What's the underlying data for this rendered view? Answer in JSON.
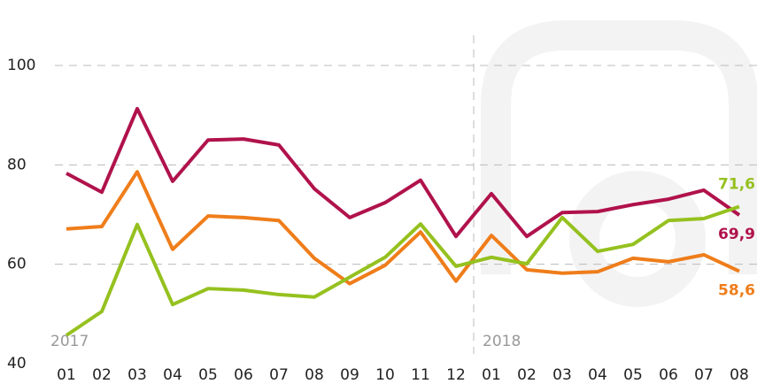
{
  "chart_data": {
    "type": "line",
    "categories": [
      "01",
      "02",
      "03",
      "04",
      "05",
      "06",
      "07",
      "08",
      "09",
      "10",
      "11",
      "12",
      "01",
      "02",
      "03",
      "04",
      "05",
      "06",
      "07",
      "08"
    ],
    "groups": [
      {
        "label": "2017",
        "count": 12
      },
      {
        "label": "2018",
        "count": 8
      }
    ],
    "series": [
      {
        "color": "#b0124c",
        "values": [
          78.3,
          74.5,
          91.3,
          76.7,
          85.0,
          85.2,
          84.0,
          75.2,
          69.4,
          72.4,
          76.9,
          65.6,
          74.2,
          65.6,
          70.4,
          70.6,
          72.0,
          73.1,
          74.9,
          69.9
        ],
        "value_labels": [
          null,
          null,
          null,
          null,
          null,
          null,
          null,
          null,
          null,
          null,
          null,
          null,
          null,
          null,
          null,
          null,
          null,
          null,
          null,
          "69,9"
        ]
      },
      {
        "color": "#ef7d1a",
        "values": [
          67.1,
          67.6,
          78.6,
          63.0,
          69.7,
          69.4,
          68.8,
          61.2,
          56.1,
          59.8,
          66.5,
          56.6,
          65.8,
          58.9,
          58.2,
          58.5,
          61.2,
          60.5,
          61.9,
          58.6
        ],
        "value_labels": [
          null,
          null,
          null,
          null,
          null,
          null,
          null,
          null,
          null,
          null,
          null,
          null,
          null,
          null,
          null,
          null,
          null,
          null,
          null,
          "58,6"
        ]
      },
      {
        "color": "#95c11f",
        "values": [
          45.7,
          50.5,
          68.0,
          51.9,
          55.1,
          54.8,
          53.9,
          53.4,
          57.4,
          61.4,
          68.1,
          59.6,
          61.4,
          60.1,
          69.4,
          62.6,
          64.0,
          68.8,
          69.2,
          71.6
        ],
        "value_labels": [
          null,
          null,
          null,
          null,
          null,
          null,
          null,
          null,
          null,
          null,
          null,
          null,
          null,
          null,
          null,
          null,
          null,
          null,
          null,
          "71,6"
        ]
      }
    ],
    "ylim": [
      40,
      100
    ],
    "yticks": [
      40,
      60,
      80,
      100
    ],
    "grid": true
  }
}
